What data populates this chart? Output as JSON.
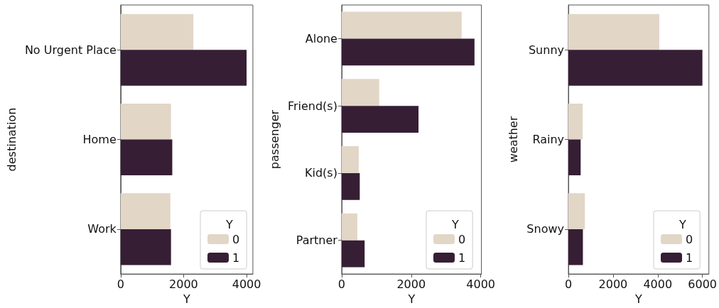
{
  "chart_data": [
    {
      "type": "bar",
      "orientation": "horizontal",
      "categories": [
        "No Urgent Place",
        "Home",
        "Work"
      ],
      "xlabel": "Y",
      "ylabel": "destination",
      "legend_title": "Y",
      "legend": "bottom right",
      "grid": false,
      "xlim": [
        0,
        4200
      ],
      "xticks": [
        0,
        2000,
        4000
      ],
      "series": [
        {
          "name": "0",
          "color": "#e2d6c7",
          "values": [
            2310,
            1600,
            1580
          ]
        },
        {
          "name": "1",
          "color": "#361e34",
          "values": [
            4000,
            1640,
            1600
          ]
        }
      ]
    },
    {
      "type": "bar",
      "orientation": "horizontal",
      "categories": [
        "Alone",
        "Friend(s)",
        "Kid(s)",
        "Partner"
      ],
      "xlabel": "Y",
      "ylabel": "passenger",
      "legend_title": "Y",
      "legend": "bottom right",
      "grid": false,
      "xlim": [
        0,
        4020
      ],
      "xticks": [
        0,
        2000,
        4000
      ],
      "series": [
        {
          "name": "0",
          "color": "#e2d6c7",
          "values": [
            3450,
            1080,
            490,
            450
          ]
        },
        {
          "name": "1",
          "color": "#361e34",
          "values": [
            3820,
            2210,
            520,
            660
          ]
        }
      ]
    },
    {
      "type": "bar",
      "orientation": "horizontal",
      "categories": [
        "Sunny",
        "Rainy",
        "Snowy"
      ],
      "xlabel": "Y",
      "ylabel": "weather",
      "legend_title": "Y",
      "legend": "bottom right",
      "grid": false,
      "xlim": [
        0,
        6290
      ],
      "xticks": [
        0,
        2000,
        4000,
        6000
      ],
      "series": [
        {
          "name": "0",
          "color": "#e2d6c7",
          "values": [
            4070,
            640,
            740
          ]
        },
        {
          "name": "1",
          "color": "#361e34",
          "values": [
            6000,
            550,
            650
          ]
        }
      ]
    }
  ]
}
